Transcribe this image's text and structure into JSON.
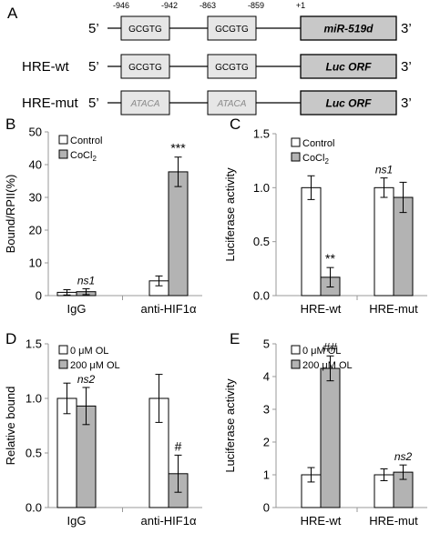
{
  "panel_a": {
    "letter": "A",
    "positions": [
      "-946",
      "-942",
      "-863",
      "-859",
      "+1"
    ],
    "rows": [
      {
        "label": "",
        "prime5": "5’",
        "prime3": "3’",
        "box1": "GCGTG",
        "box2": "GCGTG",
        "gene": "miR-519d",
        "mutant": false
      },
      {
        "label": "HRE-wt",
        "prime5": "5’",
        "prime3": "3’",
        "box1": "GCGTG",
        "box2": "GCGTG",
        "gene": "Luc ORF",
        "mutant": false
      },
      {
        "label": "HRE-mut",
        "prime5": "5’",
        "prime3": "3’",
        "box1": "ATACA",
        "box2": "ATACA",
        "gene": "Luc ORF",
        "mutant": true
      }
    ]
  },
  "colors": {
    "control": "#ffffff",
    "treated": "#b3b3b3",
    "box_fill": "#e6e6e6",
    "gene_fill": "#c8c8c8",
    "axis": "#999999"
  },
  "chart_data": [
    {
      "panel": "B",
      "type": "bar",
      "ylabel": "Bound/RPII(%)",
      "ylim": [
        0,
        50
      ],
      "yticks": [
        0,
        10,
        20,
        30,
        40,
        50
      ],
      "categories": [
        "IgG",
        "anti-HIF1α"
      ],
      "series": [
        {
          "name": "Control",
          "values": [
            1.0,
            4.5
          ],
          "errors": [
            0.8,
            1.5
          ]
        },
        {
          "name": "CoCl",
          "name_sub": "2",
          "values": [
            1.2,
            37.8
          ],
          "errors": [
            0.9,
            4.5
          ]
        }
      ],
      "annotations": [
        {
          "text": "ns1",
          "category": 0,
          "series": 1,
          "italic": true
        },
        {
          "text": "***",
          "category": 1,
          "series": 1,
          "italic": false
        }
      ],
      "legend_position": "top-left"
    },
    {
      "panel": "C",
      "type": "bar",
      "ylabel": "Luciferase activity",
      "ylim": [
        0,
        1.5
      ],
      "yticks": [
        0.0,
        0.5,
        1.0,
        1.5
      ],
      "ytick_labels": [
        "0.0",
        "0.5",
        "1.0",
        "1.5"
      ],
      "categories": [
        "HRE-wt",
        "HRE-mut"
      ],
      "series": [
        {
          "name": "Control",
          "values": [
            1.0,
            1.0
          ],
          "errors": [
            0.11,
            0.09
          ]
        },
        {
          "name": "CoCl",
          "name_sub": "2",
          "values": [
            0.17,
            0.91
          ],
          "errors": [
            0.09,
            0.14
          ]
        }
      ],
      "annotations": [
        {
          "text": "**",
          "category": 0,
          "series": 1,
          "italic": false
        },
        {
          "text": "ns1",
          "category": 1,
          "series": 0,
          "italic": true
        }
      ],
      "legend_position": "top-left"
    },
    {
      "panel": "D",
      "type": "bar",
      "ylabel": "Relative bound",
      "ylim": [
        0,
        1.5
      ],
      "yticks": [
        0.0,
        0.5,
        1.0,
        1.5
      ],
      "ytick_labels": [
        "0.0",
        "0.5",
        "1.0",
        "1.5"
      ],
      "categories": [
        "IgG",
        "anti-HIF1α"
      ],
      "series": [
        {
          "name": "0 μM OL",
          "values": [
            1.0,
            1.0
          ],
          "errors": [
            0.14,
            0.22
          ]
        },
        {
          "name": "200 μM OL",
          "values": [
            0.93,
            0.31
          ],
          "errors": [
            0.17,
            0.17
          ]
        }
      ],
      "annotations": [
        {
          "text": "ns2",
          "category": 0,
          "series": 1,
          "italic": true
        },
        {
          "text": "#",
          "category": 1,
          "series": 1,
          "italic": false
        }
      ],
      "legend_position": "top-left"
    },
    {
      "panel": "E",
      "type": "bar",
      "ylabel": "Luciferase activity",
      "ylim": [
        0,
        5
      ],
      "yticks": [
        0,
        1,
        2,
        3,
        4,
        5
      ],
      "categories": [
        "HRE-wt",
        "HRE-mut"
      ],
      "series": [
        {
          "name": "0 μM OL",
          "values": [
            1.0,
            1.0
          ],
          "errors": [
            0.22,
            0.18
          ]
        },
        {
          "name": "200 μM OL",
          "values": [
            4.25,
            1.08
          ],
          "errors": [
            0.38,
            0.22
          ]
        }
      ],
      "annotations": [
        {
          "text": "##",
          "category": 0,
          "series": 1,
          "italic": false
        },
        {
          "text": "ns2",
          "category": 1,
          "series": 1,
          "italic": true
        }
      ],
      "legend_position": "top-left"
    }
  ]
}
